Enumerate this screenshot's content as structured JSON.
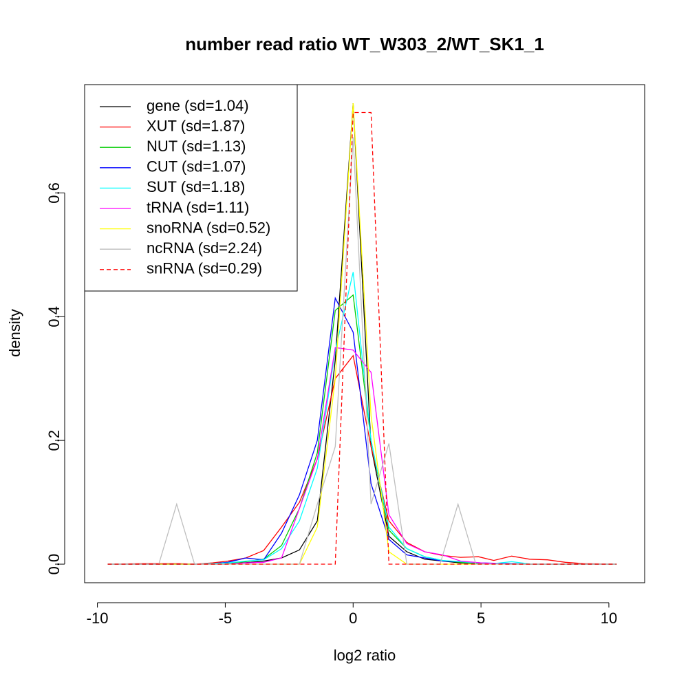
{
  "chart_data": {
    "type": "line",
    "title": "number read ratio WT_W303_2/WT_SK1_1",
    "xlabel": "log2 ratio",
    "ylabel": "density",
    "xlim": [
      -10.5,
      11.4
    ],
    "ylim": [
      -0.03,
      0.775
    ],
    "x_ticks": [
      -10,
      -5,
      0,
      5,
      10
    ],
    "x_tick_labels": [
      "-10",
      "-5",
      "0",
      "5",
      "10"
    ],
    "y_ticks": [
      0.0,
      0.2,
      0.4,
      0.6
    ],
    "y_tick_labels": [
      "0.0",
      "0.2",
      "0.4",
      "0.6"
    ],
    "grid": false,
    "legend_position": "top-left",
    "series": [
      {
        "name": "gene (sd=1.04)",
        "color": "#000000",
        "dash": "solid",
        "x": [
          -9.6,
          -7.5,
          -6.2,
          -5.0,
          -4.0,
          -3.5,
          -2.8,
          -2.1,
          -1.4,
          -0.7,
          0.0,
          0.7,
          1.4,
          2.1,
          2.8,
          3.5,
          4.2,
          5.0,
          6.0,
          7.0,
          8.0,
          9.0,
          10.3
        ],
        "y": [
          0.0,
          0.0,
          0.0,
          0.0,
          0.003,
          0.005,
          0.01,
          0.023,
          0.07,
          0.33,
          0.745,
          0.19,
          0.045,
          0.02,
          0.008,
          0.005,
          0.002,
          0.001,
          0.0,
          0.0,
          0.0,
          0.0,
          0.0
        ]
      },
      {
        "name": "XUT (sd=1.87)",
        "color": "#ff0000",
        "dash": "solid",
        "x": [
          -9.6,
          -8.2,
          -7.5,
          -6.8,
          -6.2,
          -5.5,
          -4.9,
          -4.2,
          -3.5,
          -2.8,
          -2.1,
          -1.4,
          -0.7,
          0.0,
          0.7,
          1.4,
          2.1,
          2.8,
          3.5,
          4.2,
          4.9,
          5.5,
          6.2,
          6.9,
          7.6,
          8.3,
          9.0,
          10.3
        ],
        "y": [
          0.0,
          0.001,
          0.001,
          0.001,
          0.0,
          0.002,
          0.005,
          0.01,
          0.022,
          0.06,
          0.1,
          0.17,
          0.3,
          0.337,
          0.19,
          0.07,
          0.035,
          0.02,
          0.014,
          0.011,
          0.012,
          0.006,
          0.013,
          0.008,
          0.007,
          0.003,
          0.001,
          0.0
        ]
      },
      {
        "name": "NUT (sd=1.13)",
        "color": "#00cd00",
        "dash": "solid",
        "x": [
          -9.6,
          -7.0,
          -6.2,
          -5.5,
          -4.9,
          -4.2,
          -3.5,
          -2.8,
          -2.1,
          -1.4,
          -0.7,
          0.0,
          0.7,
          1.4,
          2.1,
          2.8,
          3.5,
          4.2,
          5.0,
          6.0,
          7.0,
          10.3
        ],
        "y": [
          0.0,
          0.0,
          0.0,
          0.001,
          0.002,
          0.004,
          0.008,
          0.03,
          0.09,
          0.18,
          0.41,
          0.435,
          0.2,
          0.055,
          0.025,
          0.012,
          0.006,
          0.003,
          0.001,
          0.001,
          0.0,
          0.0
        ]
      },
      {
        "name": "CUT (sd=1.07)",
        "color": "#0000ff",
        "dash": "solid",
        "x": [
          -9.6,
          -7.0,
          -6.2,
          -5.5,
          -4.9,
          -4.2,
          -3.5,
          -2.8,
          -2.1,
          -1.4,
          -0.7,
          0.0,
          0.7,
          1.4,
          2.1,
          2.8,
          3.5,
          4.2,
          5.0,
          6.0,
          7.0,
          10.3
        ],
        "y": [
          0.0,
          0.0,
          0.0,
          0.001,
          0.003,
          0.01,
          0.007,
          0.05,
          0.112,
          0.2,
          0.43,
          0.375,
          0.13,
          0.04,
          0.015,
          0.01,
          0.005,
          0.004,
          0.002,
          0.001,
          0.0,
          0.0
        ]
      },
      {
        "name": "SUT (sd=1.18)",
        "color": "#00ffff",
        "dash": "solid",
        "x": [
          -9.6,
          -7.0,
          -6.2,
          -5.5,
          -4.9,
          -4.2,
          -3.5,
          -2.8,
          -2.1,
          -1.4,
          -0.7,
          0.0,
          0.7,
          1.4,
          2.1,
          2.8,
          3.5,
          4.2,
          4.9,
          5.5,
          6.2,
          7.0,
          10.3
        ],
        "y": [
          0.0,
          0.0,
          0.0,
          0.001,
          0.002,
          0.005,
          0.007,
          0.025,
          0.07,
          0.155,
          0.345,
          0.472,
          0.2,
          0.06,
          0.025,
          0.012,
          0.006,
          0.004,
          0.002,
          0.001,
          0.004,
          0.0,
          0.0
        ]
      },
      {
        "name": "tRNA (sd=1.11)",
        "color": "#ff00ff",
        "dash": "solid",
        "x": [
          -9.6,
          -6.2,
          -4.9,
          -4.2,
          -3.5,
          -2.8,
          -2.1,
          -1.4,
          -0.7,
          0.0,
          0.7,
          1.4,
          2.1,
          2.8,
          3.5,
          4.2,
          5.0,
          6.0,
          10.3
        ],
        "y": [
          0.0,
          0.0,
          0.0,
          0.002,
          0.003,
          0.01,
          0.09,
          0.17,
          0.35,
          0.346,
          0.31,
          0.08,
          0.033,
          0.02,
          0.015,
          0.005,
          0.002,
          0.0,
          0.0
        ]
      },
      {
        "name": "snoRNA (sd=0.52)",
        "color": "#ffff00",
        "dash": "solid",
        "x": [
          -9.6,
          -2.1,
          -1.4,
          -0.7,
          0.0,
          0.7,
          1.4,
          2.1,
          2.8,
          10.3
        ],
        "y": [
          0.0,
          0.0,
          0.06,
          0.3,
          0.745,
          0.24,
          0.02,
          0.0,
          0.0,
          0.0
        ]
      },
      {
        "name": "ncRNA (sd=2.24)",
        "color": "#bebebe",
        "dash": "solid",
        "x": [
          -9.6,
          -7.6,
          -6.9,
          -6.2,
          -2.1,
          -1.4,
          -0.7,
          0.0,
          0.7,
          1.4,
          2.1,
          3.4,
          4.1,
          4.8,
          10.3
        ],
        "y": [
          0.0,
          0.0,
          0.097,
          0.0,
          0.0,
          0.097,
          0.19,
          0.69,
          0.097,
          0.195,
          0.0,
          0.0,
          0.097,
          0.0,
          0.0
        ]
      },
      {
        "name": "snRNA (sd=0.29)",
        "color": "#ff0000",
        "dash": "dashed",
        "x": [
          -9.6,
          -0.7,
          0.0,
          0.7,
          1.4,
          10.3
        ],
        "y": [
          0.0,
          0.0,
          0.73,
          0.73,
          0.0,
          0.0
        ]
      }
    ]
  }
}
